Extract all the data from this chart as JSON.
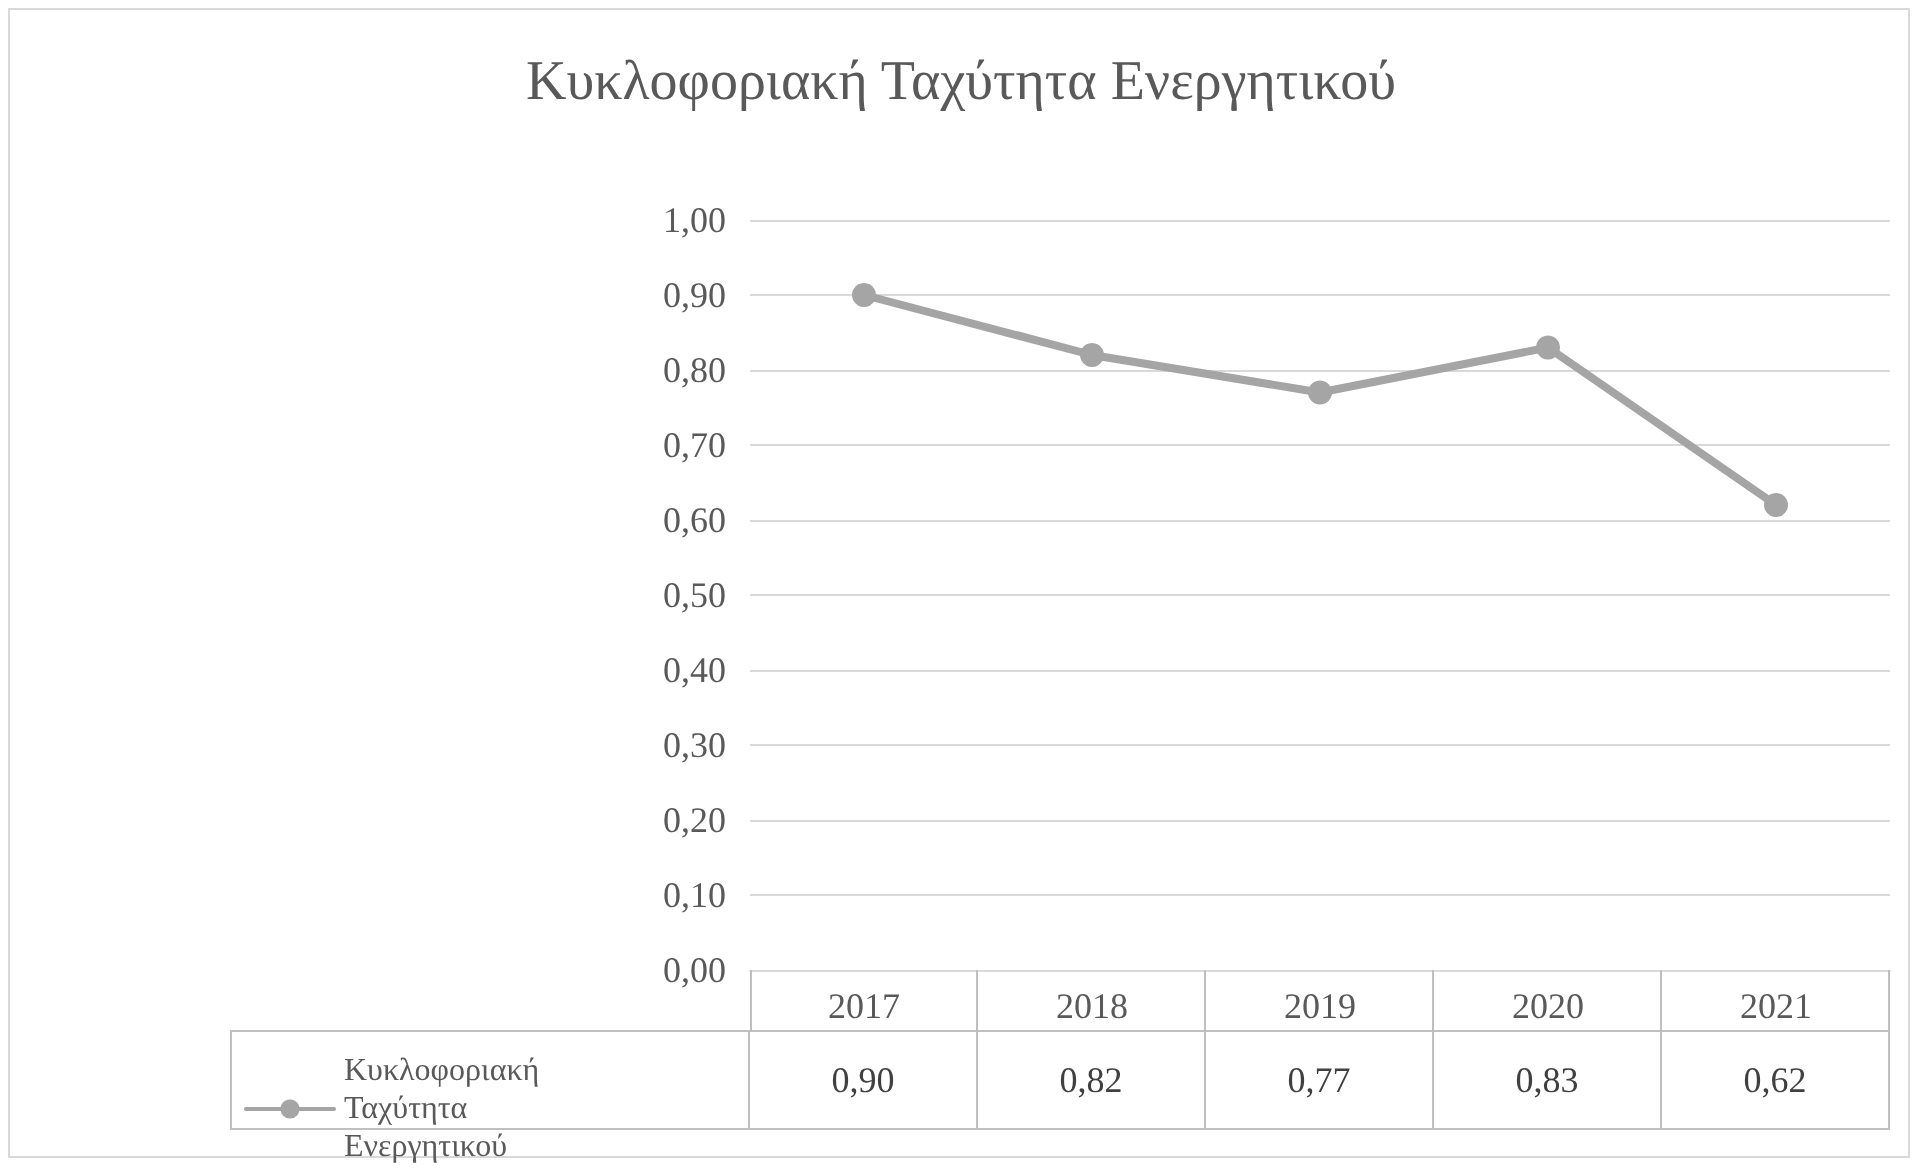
{
  "chart_data": {
    "type": "line",
    "title": "Κυκλοφοριακή Ταχύτητα Ενεργητικού",
    "categories": [
      "2017",
      "2018",
      "2019",
      "2020",
      "2021"
    ],
    "series": [
      {
        "name": "Κυκλοφοριακή Ταχύτητα Ενεργητικού",
        "color": "#a5a5a5",
        "values": [
          0.9,
          0.82,
          0.77,
          0.83,
          0.62
        ],
        "value_labels": [
          "0,90",
          "0,82",
          "0,77",
          "0,83",
          "0,62"
        ]
      }
    ],
    "ylim": [
      0,
      1
    ],
    "yticks": [
      {
        "value": 0,
        "label": "0,00"
      },
      {
        "value": 0.1,
        "label": "0,10"
      },
      {
        "value": 0.2,
        "label": "0,20"
      },
      {
        "value": 0.3,
        "label": "0,30"
      },
      {
        "value": 0.4,
        "label": "0,40"
      },
      {
        "value": 0.5,
        "label": "0,50"
      },
      {
        "value": 0.6,
        "label": "0,60"
      },
      {
        "value": 0.7,
        "label": "0,70"
      },
      {
        "value": 0.8,
        "label": "0,80"
      },
      {
        "value": 0.9,
        "label": "0,90"
      },
      {
        "value": 1,
        "label": "1,00"
      }
    ],
    "grid": "y",
    "legend": "bottom",
    "marker": "circle",
    "line_style": "solid"
  }
}
